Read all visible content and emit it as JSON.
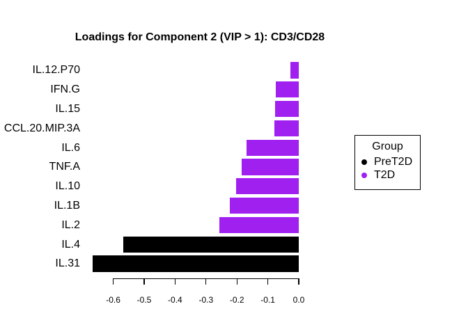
{
  "chart_data": {
    "type": "bar",
    "orientation": "horizontal",
    "title": "Loadings for Component 2 (VIP > 1): CD3/CD28",
    "items": [
      {
        "label": "IL.12.P70",
        "value": -0.026,
        "group": "T2D"
      },
      {
        "label": "IFN.G",
        "value": -0.074,
        "group": "T2D"
      },
      {
        "label": "IL.15",
        "value": -0.076,
        "group": "T2D"
      },
      {
        "label": "CCL.20.MIP.3A",
        "value": -0.079,
        "group": "T2D"
      },
      {
        "label": "IL.6",
        "value": -0.17,
        "group": "T2D"
      },
      {
        "label": "TNF.A",
        "value": -0.185,
        "group": "T2D"
      },
      {
        "label": "IL.10",
        "value": -0.203,
        "group": "T2D"
      },
      {
        "label": "IL.1B",
        "value": -0.223,
        "group": "T2D"
      },
      {
        "label": "IL.2",
        "value": -0.257,
        "group": "T2D"
      },
      {
        "label": "IL.4",
        "value": -0.568,
        "group": "PreT2D"
      },
      {
        "label": "IL.31",
        "value": -0.667,
        "group": "PreT2D"
      }
    ],
    "colors": {
      "PreT2D": "#000000",
      "T2D": "#a020f0"
    },
    "x_axis": {
      "range": [
        -0.6,
        0.0
      ],
      "ticks": [
        {
          "label": "-0.6",
          "value": -0.6
        },
        {
          "label": "-0.5",
          "value": -0.5
        },
        {
          "label": "-0.4",
          "value": -0.4
        },
        {
          "label": "-0.3",
          "value": -0.3
        },
        {
          "label": "-0.2",
          "value": -0.2
        },
        {
          "label": "-0.1",
          "value": -0.1
        },
        {
          "label": "0.0",
          "value": 0.0
        }
      ]
    },
    "legend": {
      "title": "Group",
      "position": "right",
      "entries": [
        {
          "label": "PreT2D",
          "color": "#000000"
        },
        {
          "label": "T2D",
          "color": "#a020f0"
        }
      ]
    },
    "grid": false,
    "background": "#ffffff"
  }
}
